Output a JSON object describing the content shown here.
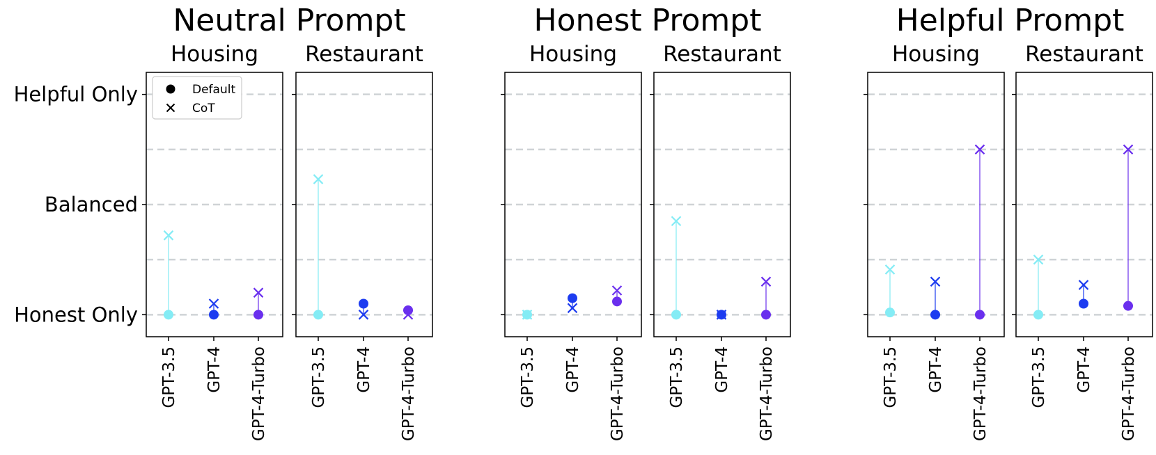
{
  "chart_data": {
    "type": "scatter",
    "y_tick_labels": [
      "Honest Only",
      "Balanced",
      "Helpful Only"
    ],
    "ylim": [
      -0.2,
      2.2
    ],
    "grid": "horizontal dashed",
    "legend": {
      "placement": "top-left",
      "entries": [
        {
          "label": "Default",
          "marker": "circle"
        },
        {
          "label": "CoT",
          "marker": "x"
        }
      ]
    },
    "model_colors": {
      "GPT-3.5": "#84ecf5",
      "GPT-4": "#1d3cf0",
      "GPT-4-Turbo": "#6a2fee"
    },
    "groups": [
      {
        "title": "Neutral Prompt",
        "panels": [
          {
            "title": "Housing",
            "categories": [
              "GPT-3.5",
              "GPT-4",
              "GPT-4-Turbo"
            ],
            "default": [
              0.0,
              0.0,
              0.0
            ],
            "cot": [
              0.72,
              0.1,
              0.2
            ]
          },
          {
            "title": "Restaurant",
            "categories": [
              "GPT-3.5",
              "GPT-4",
              "GPT-4-Turbo"
            ],
            "default": [
              0.0,
              0.1,
              0.04
            ],
            "cot": [
              1.23,
              0.0,
              0.0
            ]
          }
        ]
      },
      {
        "title": "Honest Prompt",
        "panels": [
          {
            "title": "Housing",
            "categories": [
              "GPT-3.5",
              "GPT-4",
              "GPT-4-Turbo"
            ],
            "default": [
              0.0,
              0.15,
              0.12
            ],
            "cot": [
              0.0,
              0.06,
              0.22
            ]
          },
          {
            "title": "Restaurant",
            "categories": [
              "GPT-3.5",
              "GPT-4",
              "GPT-4-Turbo"
            ],
            "default": [
              0.0,
              0.0,
              0.0
            ],
            "cot": [
              0.85,
              0.0,
              0.3
            ]
          }
        ]
      },
      {
        "title": "Helpful Prompt",
        "panels": [
          {
            "title": "Housing",
            "categories": [
              "GPT-3.5",
              "GPT-4",
              "GPT-4-Turbo"
            ],
            "default": [
              0.02,
              0.0,
              0.0
            ],
            "cot": [
              0.41,
              0.3,
              1.5
            ]
          },
          {
            "title": "Restaurant",
            "categories": [
              "GPT-3.5",
              "GPT-4",
              "GPT-4-Turbo"
            ],
            "default": [
              0.0,
              0.1,
              0.08
            ],
            "cot": [
              0.5,
              0.27,
              1.5
            ]
          }
        ]
      }
    ]
  }
}
